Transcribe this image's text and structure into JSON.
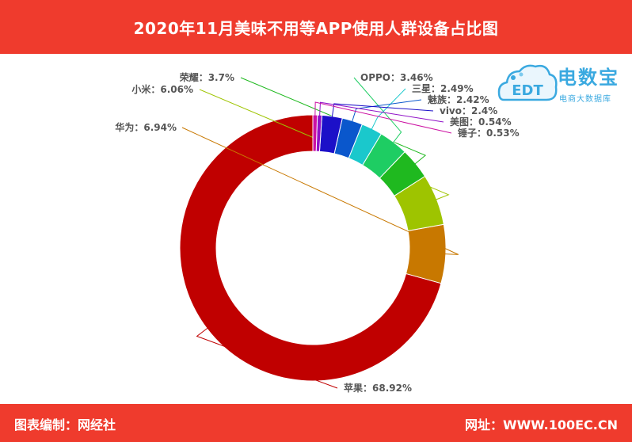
{
  "header": {
    "title": "2020年11月美味不用等APP使用人群设备占比图"
  },
  "footer": {
    "left": "图表编制：网经社",
    "right": "网址：WWW.100EC.CN"
  },
  "logo": {
    "name": "电数宝",
    "subtitle": "电商大数据库",
    "mark": "EDT"
  },
  "chart_data": {
    "type": "pie",
    "donut": true,
    "categories": [
      "苹果",
      "华为",
      "小米",
      "荣耀",
      "OPPO",
      "三星",
      "魅族",
      "vivo",
      "美图",
      "锤子"
    ],
    "values": [
      68.92,
      6.94,
      6.06,
      3.7,
      3.46,
      2.49,
      2.42,
      2.4,
      0.54,
      0.53
    ],
    "labels": [
      "苹果：68.92%",
      "华为：6.94%",
      "小米：6.06%",
      "荣耀：3.7%",
      "OPPO：3.46%",
      "三星：2.49%",
      "魅族：2.42%",
      "vivo：2.4%",
      "美图：0.54%",
      "锤子：0.53%"
    ],
    "colors": [
      "#c00000",
      "#c87800",
      "#9ec400",
      "#1fb91f",
      "#1ecd63",
      "#1ac8cc",
      "#0a57cc",
      "#1c10c8",
      "#9012c8",
      "#cc12a3"
    ]
  }
}
